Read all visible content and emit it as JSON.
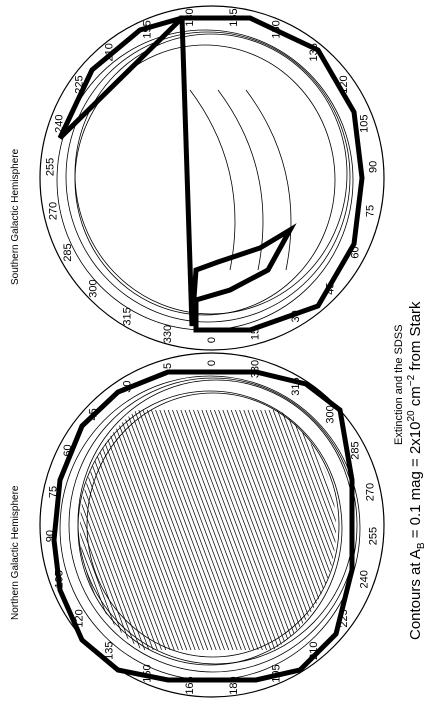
{
  "figure": {
    "caption_title": "Extinction and the SDSS",
    "caption_contours": "Contours at A",
    "caption_sub": "B",
    "caption_rest": " = 0.1 mag = 2x10",
    "caption_exp1": "20",
    "caption_unit": " cm",
    "caption_exp2": "−2",
    "caption_from": " from Stark",
    "north_title": "Northern Galactic Hemisphere",
    "south_title": "Southern Galactic Hemisphere",
    "north_ticks": [
      "0",
      "15",
      "30",
      "45",
      "60",
      "75",
      "90",
      "105",
      "120",
      "135",
      "150",
      "165",
      "180",
      "195",
      "210",
      "225",
      "240",
      "255",
      "270",
      "285",
      "300",
      "315",
      "330"
    ],
    "south_ticks": [
      "0",
      "15",
      "30",
      "45",
      "60",
      "75",
      "90",
      "105",
      "120",
      "135",
      "150",
      "165",
      "180",
      "195",
      "210",
      "225",
      "240",
      "255",
      "270",
      "285",
      "300",
      "315",
      "330"
    ],
    "colors": {
      "ink": "#000000",
      "paper": "#ffffff"
    }
  }
}
